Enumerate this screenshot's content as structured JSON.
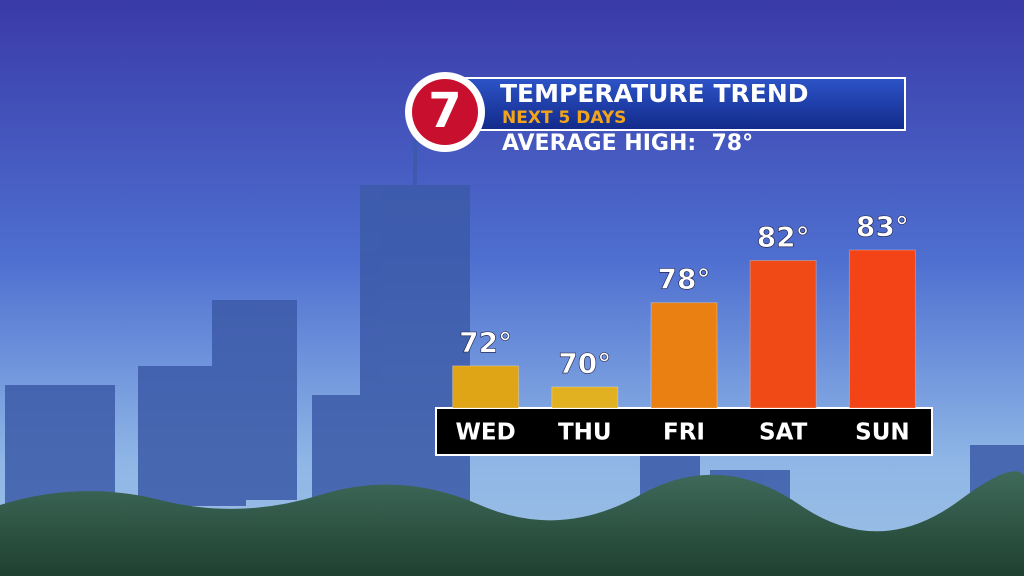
{
  "chart_data": {
    "type": "bar",
    "logo": "7",
    "title": "TEMPERATURE TREND",
    "subtitle": "NEXT 5 DAYS",
    "annotation": "AVERAGE HIGH:  78°",
    "categories": [
      "WED",
      "THU",
      "FRI",
      "SAT",
      "SUN"
    ],
    "values": [
      72,
      70,
      78,
      82,
      83
    ],
    "value_labels": [
      "72°",
      "70°",
      "78°",
      "82°",
      "83°"
    ],
    "colors": [
      "#e0a516",
      "#e2b122",
      "#ea8012",
      "#f04b16",
      "#f24416"
    ],
    "ylim": [
      68,
      83
    ]
  }
}
